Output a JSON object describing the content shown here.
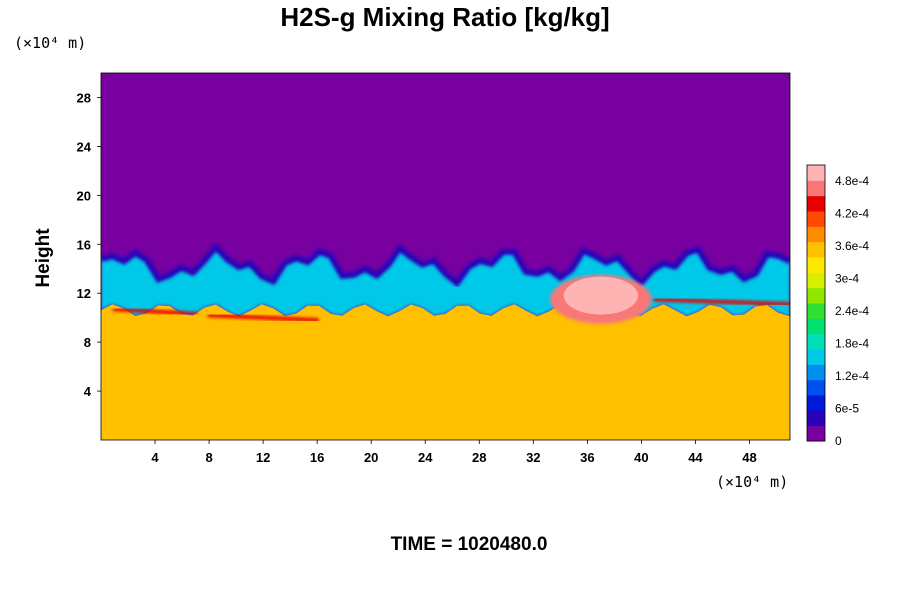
{
  "chart_data": {
    "type": "heatmap",
    "title": "H2S-g Mixing Ratio [kg/kg]",
    "ylabel": "Height",
    "xlabel": "",
    "y_unit": "(×10⁴ m)",
    "x_unit": "(×10⁴ m)",
    "time_label": "TIME = 1020480.0",
    "xlim": [
      0,
      51
    ],
    "ylim": [
      0,
      30
    ],
    "x_ticks": [
      4,
      8,
      12,
      16,
      20,
      24,
      28,
      32,
      36,
      40,
      44,
      48
    ],
    "y_ticks": [
      4,
      8,
      12,
      16,
      20,
      24,
      28
    ],
    "colorbar": {
      "range": [
        0,
        0.00051
      ],
      "labels": [
        {
          "value": 0,
          "text": "0"
        },
        {
          "value": 6e-05,
          "text": "6e-5"
        },
        {
          "value": 0.00012,
          "text": "1.2e-4"
        },
        {
          "value": 0.00018,
          "text": "1.8e-4"
        },
        {
          "value": 0.00024,
          "text": "2.4e-4"
        },
        {
          "value": 0.0003,
          "text": "3e-4"
        },
        {
          "value": 0.00036,
          "text": "3.6e-4"
        },
        {
          "value": 0.00042,
          "text": "4.2e-4"
        },
        {
          "value": 0.00048,
          "text": "4.8e-4"
        }
      ],
      "colors": [
        "#7800a0",
        "#2a00b8",
        "#0018d8",
        "#0050f0",
        "#0090f0",
        "#00c8e8",
        "#00e0b8",
        "#00e070",
        "#30e030",
        "#90e800",
        "#d8f000",
        "#ffe800",
        "#ffc000",
        "#ff8c00",
        "#ff4800",
        "#e80000",
        "#f87878",
        "#ffb4b4"
      ]
    },
    "regions": [
      {
        "name": "upper",
        "value": 0
      },
      {
        "name": "lower",
        "value": 0.00034
      },
      {
        "name": "interface",
        "value": 0.00015
      },
      {
        "name": "plume",
        "value": 0.0005
      }
    ]
  }
}
